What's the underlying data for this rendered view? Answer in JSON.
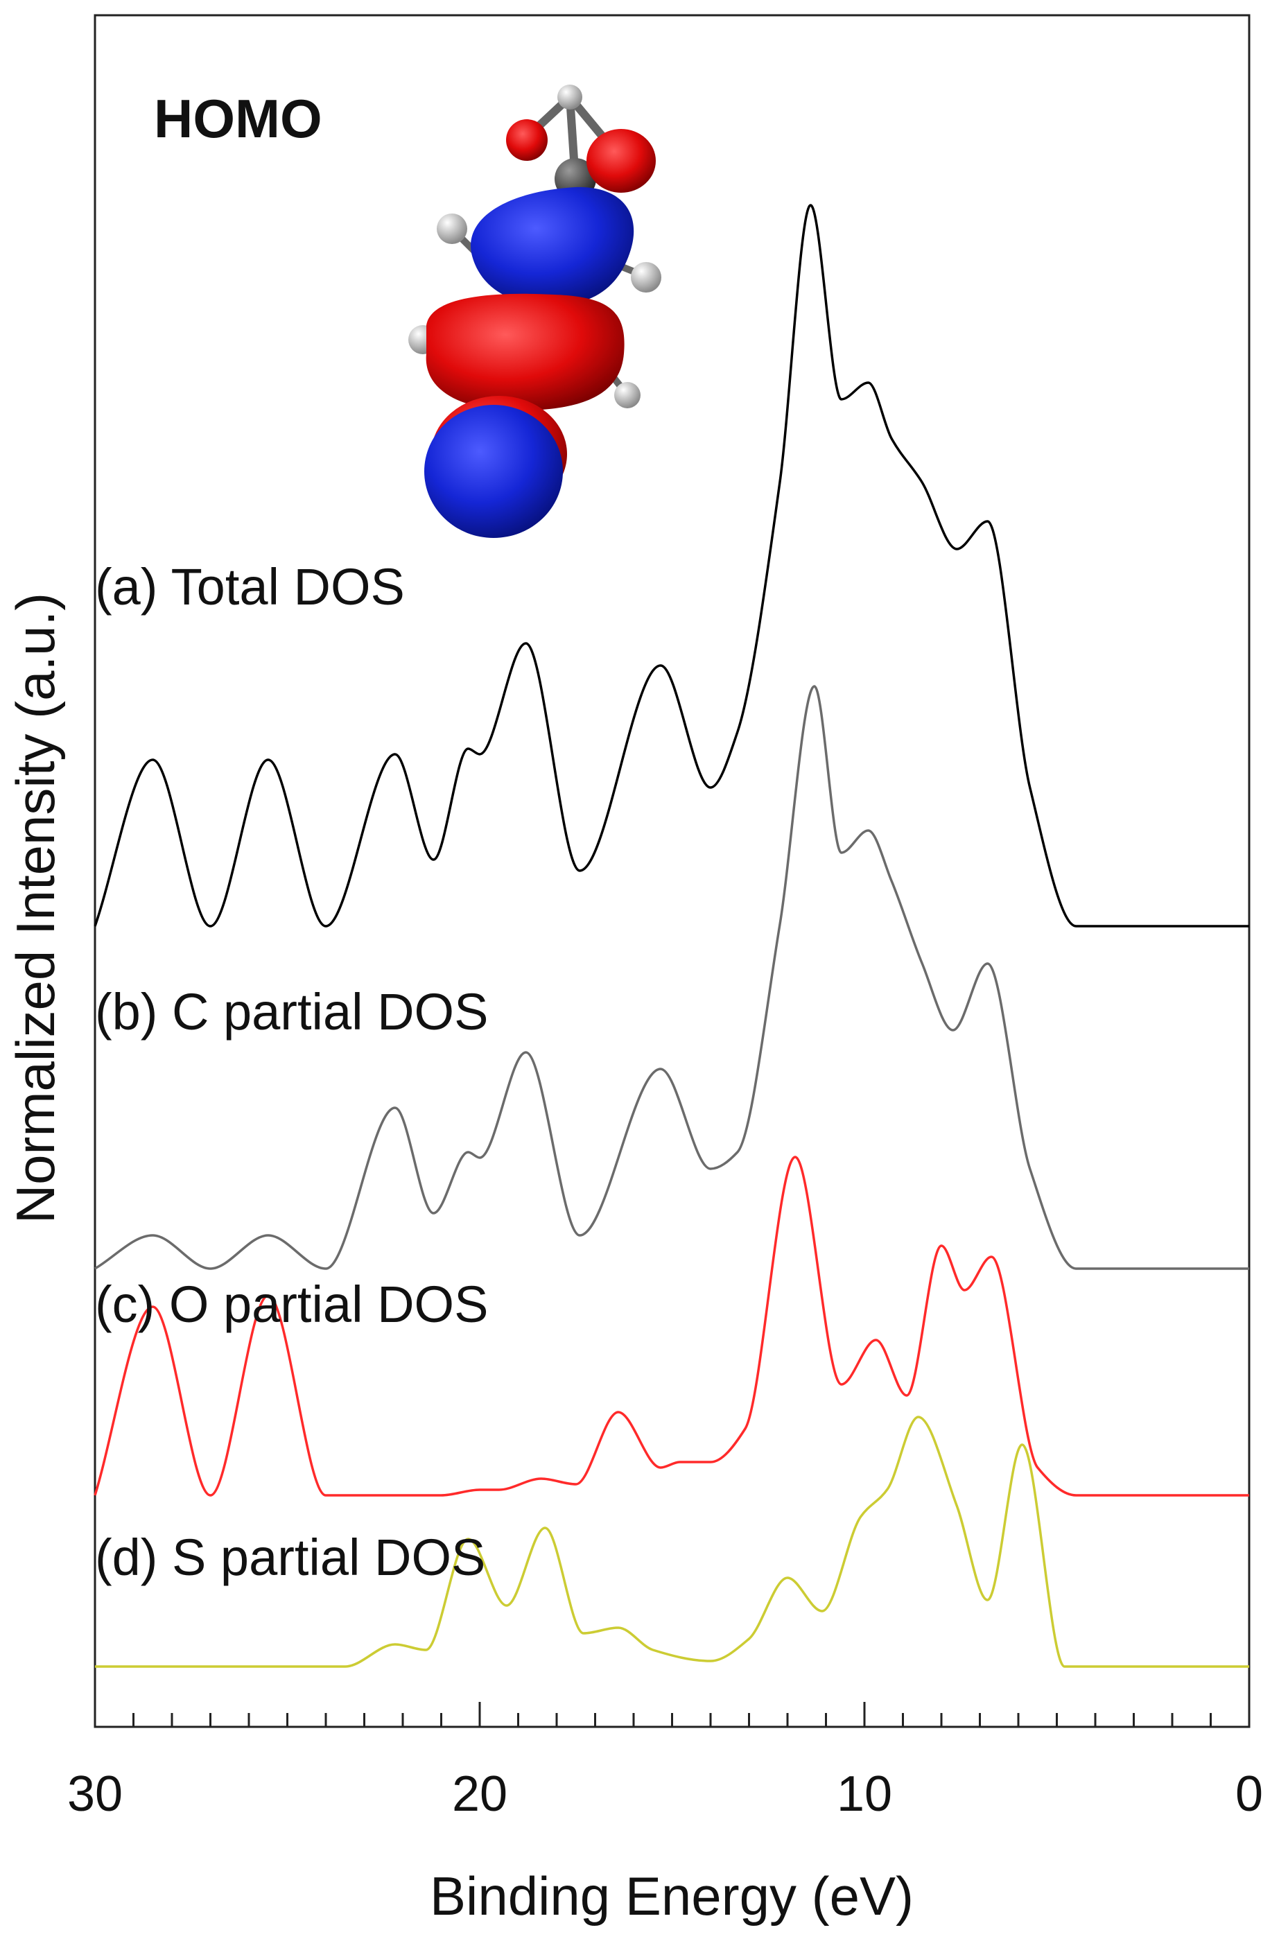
{
  "chart_data": {
    "type": "line",
    "xlabel": "Binding Energy (eV)",
    "ylabel": "Normalized Intensity (a.u.)",
    "xlim": [
      30,
      0
    ],
    "x_ticks": [
      30,
      20,
      10,
      0
    ],
    "x_tick_labels": [
      "30",
      "20",
      "10",
      "0"
    ],
    "x_minor_step": 1,
    "inset": {
      "label": "HOMO",
      "description": "molecular orbital isosurface"
    },
    "series": [
      {
        "name": "(a) Total DOS",
        "color": "#000000",
        "baseline": 0,
        "x": [
          30,
          28.5,
          27,
          25.5,
          24,
          22.2,
          21.2,
          20.3,
          20.0,
          18.8,
          17.4,
          15.3,
          14.0,
          13.3,
          12.2,
          11.4,
          10.6,
          9.9,
          9.3,
          8.5,
          7.6,
          6.8,
          5.7,
          4.5,
          0
        ],
        "values": [
          0,
          0.3,
          0,
          0.3,
          0,
          0.31,
          0.12,
          0.32,
          0.31,
          0.51,
          0.1,
          0.47,
          0.25,
          0.35,
          0.8,
          1.3,
          0.95,
          0.98,
          0.88,
          0.8,
          0.68,
          0.73,
          0.25,
          0,
          0
        ]
      },
      {
        "name": "(b) C partial DOS",
        "color": "#6b6b6b",
        "baseline": 0,
        "x": [
          30,
          28.5,
          27,
          25.5,
          24,
          22.2,
          21.2,
          20.3,
          20.0,
          18.8,
          17.4,
          15.3,
          14.0,
          13.3,
          12.2,
          11.3,
          10.6,
          9.9,
          9.3,
          8.5,
          7.7,
          6.8,
          5.7,
          4.5,
          0
        ],
        "values": [
          0,
          0.06,
          0,
          0.06,
          0,
          0.29,
          0.1,
          0.21,
          0.2,
          0.39,
          0.06,
          0.36,
          0.18,
          0.21,
          0.62,
          1.05,
          0.75,
          0.79,
          0.7,
          0.55,
          0.43,
          0.55,
          0.18,
          0,
          0
        ]
      },
      {
        "name": "(c) O partial DOS",
        "color": "#ff2a2a",
        "baseline": 0,
        "x": [
          30,
          28.5,
          27,
          25.5,
          24,
          21,
          20,
          19.5,
          18.4,
          17.5,
          16.4,
          15.3,
          14.8,
          14.0,
          13.1,
          11.8,
          10.6,
          9.7,
          8.9,
          8.0,
          7.4,
          6.7,
          5.5,
          4.5,
          0
        ],
        "values": [
          0,
          0.34,
          0,
          0.36,
          0,
          0,
          0.01,
          0.01,
          0.03,
          0.02,
          0.15,
          0.05,
          0.06,
          0.06,
          0.12,
          0.61,
          0.2,
          0.28,
          0.18,
          0.45,
          0.37,
          0.43,
          0.05,
          0,
          0
        ]
      },
      {
        "name": "(d) S partial DOS",
        "color": "#cccc33",
        "baseline": 0,
        "x": [
          30,
          23.5,
          22.2,
          21.4,
          20.3,
          19.3,
          18.3,
          17.3,
          16.4,
          15.5,
          14.0,
          13.0,
          12.0,
          11.1,
          10.1,
          9.4,
          8.6,
          7.6,
          6.8,
          5.9,
          4.8,
          0
        ],
        "values": [
          0,
          0,
          0.04,
          0.03,
          0.23,
          0.11,
          0.25,
          0.06,
          0.07,
          0.03,
          0.01,
          0.05,
          0.16,
          0.1,
          0.27,
          0.32,
          0.45,
          0.29,
          0.12,
          0.4,
          0,
          0
        ]
      }
    ]
  }
}
